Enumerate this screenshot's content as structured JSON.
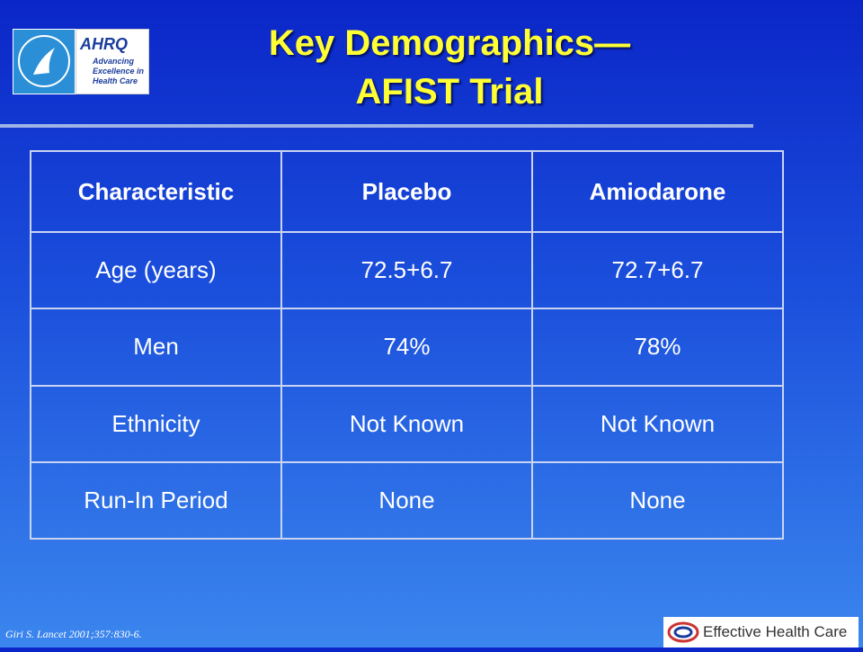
{
  "title_lines": [
    "Key Demographics—",
    "AFIST Trial"
  ],
  "logo_ahrq": {
    "name": "AHRQ",
    "tagline": [
      "Advancing",
      "Excellence in",
      "Health Care"
    ]
  },
  "table": {
    "header": [
      "Characteristic",
      "Placebo",
      "Amiodarone"
    ],
    "rows": [
      [
        "Age (years)",
        "72.5+6.7",
        "72.7+6.7"
      ],
      [
        "Men",
        "74%",
        "78%"
      ],
      [
        "Ethnicity",
        "Not Known",
        "Not Known"
      ],
      [
        "Run-In Period",
        "None",
        "None"
      ]
    ]
  },
  "citation": "Giri S. Lancet 2001;357:830-6.",
  "logo_ehc": "Effective Health Care"
}
